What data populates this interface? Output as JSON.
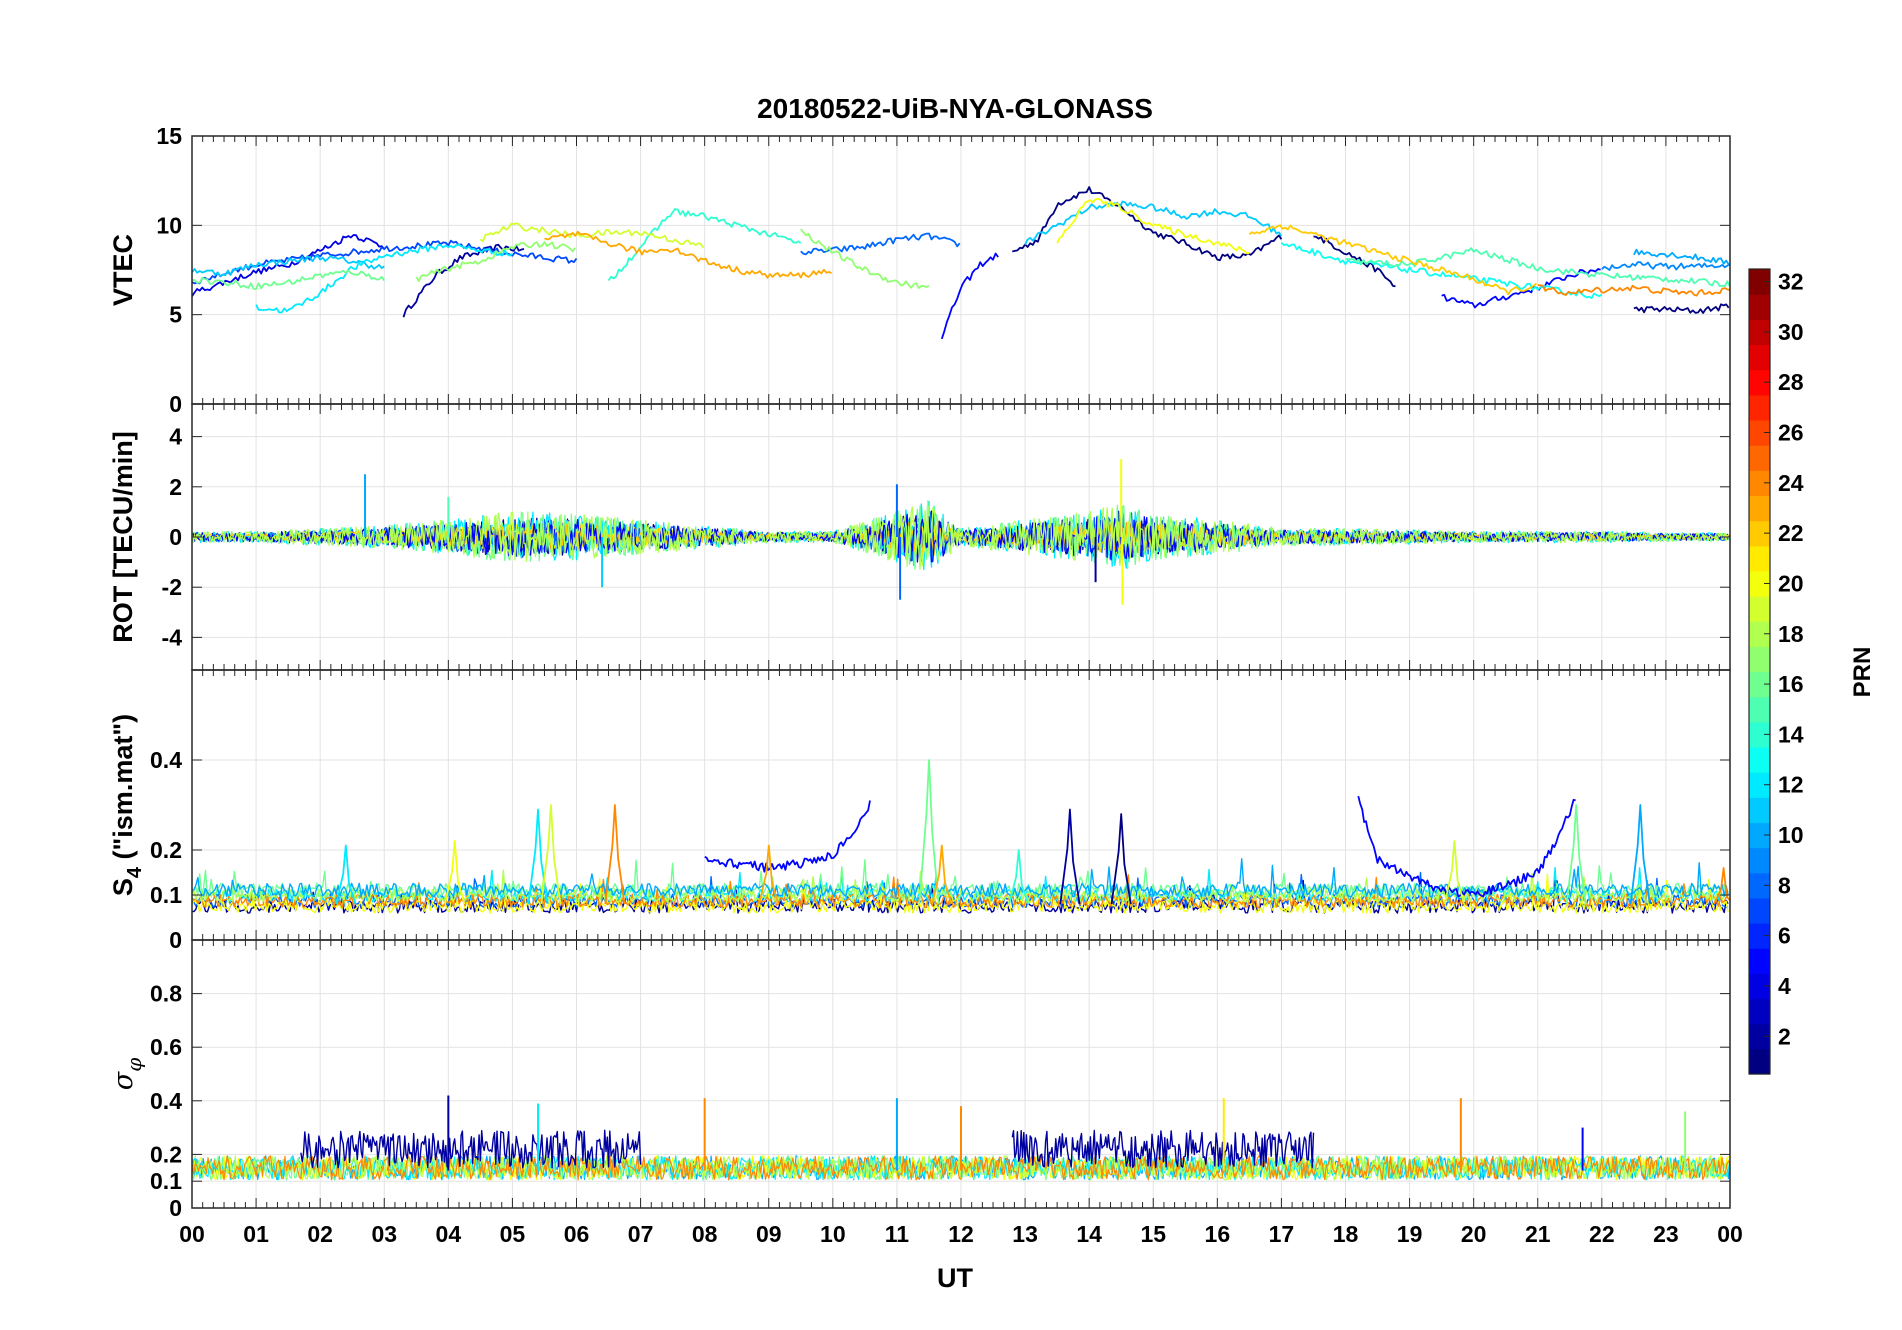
{
  "chart_data": {
    "title": "20180522-UiB-NYA-GLONASS",
    "type": "line",
    "xlabel": "UT",
    "x_ticks": [
      "00",
      "01",
      "02",
      "03",
      "04",
      "05",
      "06",
      "07",
      "08",
      "09",
      "10",
      "11",
      "12",
      "13",
      "14",
      "15",
      "16",
      "17",
      "18",
      "19",
      "20",
      "21",
      "22",
      "23",
      "00"
    ],
    "xlim": [
      0,
      24
    ],
    "grid": true,
    "colorbar": {
      "label": "PRN",
      "colormap": "jet",
      "range": [
        1,
        32
      ],
      "ticks": [
        "2",
        "4",
        "6",
        "8",
        "10",
        "12",
        "14",
        "16",
        "18",
        "20",
        "22",
        "24",
        "26",
        "28",
        "30",
        "32"
      ],
      "tick_values": [
        2,
        4,
        6,
        8,
        10,
        12,
        14,
        16,
        18,
        20,
        22,
        24,
        26,
        28,
        30,
        32
      ]
    },
    "panels": [
      {
        "ylabel": "VTEC",
        "ylim": [
          0,
          15
        ],
        "y_ticks": [
          0,
          5,
          10,
          15
        ],
        "y_tick_labels": [
          "0",
          "5",
          "10",
          "15"
        ],
        "series": [
          {
            "prn": 2,
            "x": [
              3.3,
              3.8,
              4.2,
              4.8,
              5.2
            ],
            "y": [
              5.0,
              7.2,
              8.2,
              8.8,
              8.6
            ]
          },
          {
            "prn": 1,
            "x": [
              12.8,
              13.2,
              13.5,
              14.0,
              14.5,
              15.0,
              15.5,
              16.0,
              16.5,
              17.0
            ],
            "y": [
              8.5,
              9.2,
              11.2,
              12.0,
              11.0,
              9.6,
              9.0,
              8.2,
              8.3,
              9.4
            ]
          },
          {
            "prn": 1,
            "x": [
              17.5,
              18.0,
              18.5,
              18.8
            ],
            "y": [
              9.5,
              8.5,
              7.5,
              6.5
            ]
          },
          {
            "prn": 1,
            "x": [
              22.5,
              23.0,
              23.5,
              24.0
            ],
            "y": [
              5.3,
              5.3,
              5.2,
              5.5
            ]
          },
          {
            "prn": 4,
            "x": [
              0.0,
              0.5,
              1.0,
              1.5,
              2.0,
              2.5,
              3.0
            ],
            "y": [
              6.2,
              6.8,
              7.4,
              7.8,
              8.6,
              9.5,
              8.8
            ]
          },
          {
            "prn": 5,
            "x": [
              11.7,
              12.0,
              12.3,
              12.6
            ],
            "y": [
              3.8,
              6.5,
              7.8,
              8.4
            ]
          },
          {
            "prn": 5,
            "x": [
              19.5,
              20.0,
              20.5,
              21.0,
              21.5,
              22.0
            ],
            "y": [
              6.0,
              5.5,
              6.0,
              6.5,
              7.2,
              7.6
            ]
          },
          {
            "prn": 7,
            "x": [
              0.0,
              1.0,
              2.0,
              3.0,
              4.0,
              5.0,
              6.0
            ],
            "y": [
              6.8,
              7.8,
              8.3,
              8.7,
              9.0,
              8.4,
              8.0
            ]
          },
          {
            "prn": 8,
            "x": [
              9.5,
              10.0,
              10.5,
              11.0,
              11.5,
              12.0
            ],
            "y": [
              8.5,
              8.6,
              8.8,
              9.2,
              9.4,
              8.9
            ]
          },
          {
            "prn": 9,
            "x": [
              22.0,
              22.5,
              23.0,
              23.5,
              24.0
            ],
            "y": [
              7.6,
              7.8,
              7.7,
              7.7,
              7.8
            ]
          },
          {
            "prn": 10,
            "x": [
              22.5,
              23.0,
              23.5,
              24.0
            ],
            "y": [
              8.5,
              8.4,
              8.2,
              7.9
            ]
          },
          {
            "prn": 11,
            "x": [
              0.0,
              0.5,
              1.0,
              1.5,
              2.0,
              2.5,
              3.0
            ],
            "y": [
              7.5,
              7.3,
              7.8,
              8.0,
              8.2,
              8.0,
              7.6
            ]
          },
          {
            "prn": 11,
            "x": [
              13.0,
              13.5,
              14.0,
              14.5,
              15.0,
              15.5,
              16.0,
              16.5,
              17.0
            ],
            "y": [
              9.0,
              10.0,
              11.0,
              11.2,
              11.0,
              10.5,
              10.8,
              10.5,
              9.5
            ]
          },
          {
            "prn": 12,
            "x": [
              1.0,
              1.5,
              2.0,
              2.5,
              3.0,
              3.5,
              4.0,
              4.5,
              5.0
            ],
            "y": [
              5.4,
              5.2,
              6.2,
              7.6,
              8.3,
              8.6,
              8.9,
              8.6,
              8.4
            ]
          },
          {
            "prn": 13,
            "x": [
              17.0,
              18.0,
              19.0,
              20.0,
              21.0,
              22.0
            ],
            "y": [
              9.0,
              8.0,
              7.5,
              7.0,
              6.5,
              6.0
            ]
          },
          {
            "prn": 14,
            "x": [
              6.5,
              7.0,
              7.5,
              8.0,
              8.5,
              9.0,
              9.5
            ],
            "y": [
              6.8,
              8.8,
              10.8,
              10.5,
              10.0,
              9.5,
              9.0
            ]
          },
          {
            "prn": 15,
            "x": [
              18.0,
              19.0,
              20.0,
              21.0,
              22.0,
              23.0,
              24.0
            ],
            "y": [
              8.0,
              7.8,
              8.6,
              7.6,
              7.2,
              7.0,
              6.7
            ]
          },
          {
            "prn": 16,
            "x": [
              0.0,
              0.5,
              1.0,
              1.5,
              2.0,
              2.5,
              3.0
            ],
            "y": [
              7.0,
              6.8,
              6.6,
              6.8,
              7.2,
              7.4,
              7.0
            ]
          },
          {
            "prn": 17,
            "x": [
              9.5,
              10.0,
              10.5,
              11.0,
              11.5
            ],
            "y": [
              9.7,
              8.5,
              7.5,
              6.8,
              6.5
            ]
          },
          {
            "prn": 17,
            "x": [
              3.5,
              4.0,
              4.5,
              5.0,
              5.5,
              6.0
            ],
            "y": [
              7.0,
              7.6,
              8.0,
              8.8,
              9.0,
              8.6
            ]
          },
          {
            "prn": 19,
            "x": [
              4.5,
              5.0,
              5.5,
              6.0,
              6.5,
              7.0,
              7.5,
              8.0
            ],
            "y": [
              9.2,
              10.0,
              9.7,
              9.4,
              9.6,
              9.6,
              9.2,
              8.8
            ]
          },
          {
            "prn": 20,
            "x": [
              13.5,
              14.0,
              14.5,
              15.0,
              15.5,
              16.0,
              16.5
            ],
            "y": [
              9.0,
              11.5,
              11.0,
              10.0,
              9.5,
              9.0,
              8.5
            ]
          },
          {
            "prn": 22,
            "x": [
              16.5,
              17.0,
              17.5,
              18.0,
              18.5,
              19.0,
              19.5,
              20.0,
              20.5,
              21.0
            ],
            "y": [
              9.5,
              10.0,
              9.5,
              9.0,
              8.5,
              8.0,
              7.5,
              7.0,
              6.3,
              6.6
            ]
          },
          {
            "prn": 23,
            "x": [
              5.5,
              6.0,
              6.5,
              7.0,
              7.5,
              8.0,
              8.5,
              9.0,
              9.5,
              10.0
            ],
            "y": [
              9.2,
              9.5,
              9.0,
              8.5,
              8.7,
              8.0,
              7.5,
              7.2,
              7.2,
              7.5
            ]
          },
          {
            "prn": 24,
            "x": [
              21.0,
              21.5,
              22.0,
              22.5,
              23.0,
              23.5,
              24.0
            ],
            "y": [
              6.5,
              6.2,
              6.4,
              6.5,
              6.3,
              6.2,
              6.4
            ]
          }
        ]
      },
      {
        "ylabel": "ROT [TECU/min]",
        "ylim": [
          -5.3,
          5.3
        ],
        "y_ticks": [
          -4,
          -2,
          0,
          2,
          4
        ],
        "y_tick_labels": [
          "-4",
          "-2",
          "0",
          "2",
          "4"
        ],
        "noise_envelope": {
          "x": [
            0,
            1,
            2,
            3,
            4,
            5,
            6,
            7,
            8,
            9,
            10,
            11,
            11.5,
            12,
            13,
            14,
            14.5,
            15,
            16,
            17,
            18,
            19,
            20,
            21,
            22,
            23,
            24
          ],
          "amplitude": [
            0.2,
            0.2,
            0.3,
            0.4,
            0.6,
            0.9,
            0.8,
            0.6,
            0.4,
            0.2,
            0.2,
            0.9,
            1.3,
            0.3,
            0.6,
            0.9,
            1.2,
            0.8,
            0.6,
            0.3,
            0.3,
            0.25,
            0.2,
            0.2,
            0.2,
            0.15,
            0.15
          ]
        },
        "spikes": [
          {
            "prn": 10,
            "x": 2.7,
            "y": 2.5
          },
          {
            "prn": 15,
            "x": 4.0,
            "y": 1.6
          },
          {
            "prn": 11,
            "x": 6.4,
            "y": -2.0
          },
          {
            "prn": 8,
            "x": 11.0,
            "y": 2.1
          },
          {
            "prn": 8,
            "x": 11.05,
            "y": -2.5
          },
          {
            "prn": 20,
            "x": 14.5,
            "y": 3.1
          },
          {
            "prn": 20,
            "x": 14.52,
            "y": -2.7
          },
          {
            "prn": 2,
            "x": 14.1,
            "y": -1.8
          }
        ]
      },
      {
        "ylabel": "S4 (\"ism.mat\")",
        "ylabel_main": "S",
        "ylabel_sub": "4",
        "ylabel_rest": " (\"ism.mat\")",
        "ylim": [
          0,
          0.6
        ],
        "y_ticks": [
          0,
          0.1,
          0.2,
          0.4
        ],
        "y_tick_labels": [
          "0",
          "0.1",
          "0.2",
          "0.4"
        ],
        "baseline": 0.06,
        "series": [
          {
            "prn": 5,
            "x": [
              8.0,
              8.5,
              9.0,
              9.5,
              10.0,
              10.3,
              10.6
            ],
            "y": [
              0.18,
              0.17,
              0.16,
              0.17,
              0.19,
              0.23,
              0.31
            ]
          },
          {
            "prn": 5,
            "x": [
              18.2,
              18.5,
              19.0,
              19.5,
              20.0,
              20.5,
              21.0,
              21.3,
              21.6
            ],
            "y": [
              0.31,
              0.18,
              0.14,
              0.11,
              0.1,
              0.12,
              0.15,
              0.22,
              0.32
            ]
          }
        ],
        "spikes": [
          {
            "prn": 12,
            "x": 5.4,
            "y": 0.29
          },
          {
            "prn": 19,
            "x": 5.6,
            "y": 0.3
          },
          {
            "prn": 24,
            "x": 6.6,
            "y": 0.3
          },
          {
            "prn": 16,
            "x": 11.5,
            "y": 0.4
          },
          {
            "prn": 23,
            "x": 11.7,
            "y": 0.21
          },
          {
            "prn": 2,
            "x": 13.7,
            "y": 0.29
          },
          {
            "prn": 1,
            "x": 14.5,
            "y": 0.28
          },
          {
            "prn": 14,
            "x": 12.9,
            "y": 0.2
          },
          {
            "prn": 10,
            "x": 22.6,
            "y": 0.3
          },
          {
            "prn": 16,
            "x": 21.6,
            "y": 0.3
          },
          {
            "prn": 20,
            "x": 4.1,
            "y": 0.22
          },
          {
            "prn": 12,
            "x": 2.4,
            "y": 0.21
          },
          {
            "prn": 23,
            "x": 9.0,
            "y": 0.21
          },
          {
            "prn": 19,
            "x": 19.7,
            "y": 0.22
          },
          {
            "prn": 24,
            "x": 23.9,
            "y": 0.16
          }
        ]
      },
      {
        "ylabel": "σφ",
        "ylabel_main": "σ",
        "ylabel_sub": "φ",
        "ylim": [
          0,
          1.0
        ],
        "y_ticks": [
          0,
          0.1,
          0.2,
          0.4,
          0.6,
          0.8
        ],
        "y_tick_labels": [
          "0",
          "0.1",
          "0.2",
          "0.4",
          "0.6",
          "0.8"
        ],
        "baseline": 0.15,
        "elevated_prn2_intervals": [
          [
            1.7,
            7.0
          ],
          [
            12.8,
            17.5
          ]
        ],
        "elevated_level": 0.22,
        "spikes": [
          {
            "prn": 2,
            "x": 4.0,
            "y": 0.42
          },
          {
            "prn": 12,
            "x": 5.4,
            "y": 0.39
          },
          {
            "prn": 24,
            "x": 8.0,
            "y": 0.41
          },
          {
            "prn": 10,
            "x": 11.0,
            "y": 0.41
          },
          {
            "prn": 24,
            "x": 12.0,
            "y": 0.38
          },
          {
            "prn": 21,
            "x": 16.1,
            "y": 0.41
          },
          {
            "prn": 24,
            "x": 19.8,
            "y": 0.41
          },
          {
            "prn": 17,
            "x": 23.3,
            "y": 0.36
          },
          {
            "prn": 5,
            "x": 21.7,
            "y": 0.3
          }
        ]
      }
    ]
  }
}
